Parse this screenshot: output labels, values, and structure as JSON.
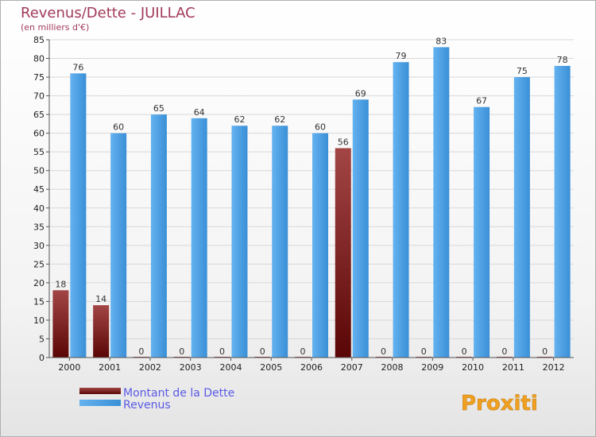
{
  "chart_data": {
    "type": "bar",
    "title": "Revenus/Dette - JUILLAC",
    "subtitle": "(en milliers d'€)",
    "categories": [
      "2000",
      "2001",
      "2002",
      "2003",
      "2004",
      "2005",
      "2006",
      "2007",
      "2008",
      "2009",
      "2010",
      "2011",
      "2012"
    ],
    "series": [
      {
        "name": "Montant de la Dette",
        "color": "#6b0f0f",
        "values": [
          18,
          14,
          0,
          0,
          0,
          0,
          0,
          56,
          0,
          0,
          0,
          0,
          0
        ]
      },
      {
        "name": "Revenus",
        "color": "#4a9fe0",
        "values": [
          76,
          60,
          65,
          64,
          62,
          62,
          60,
          69,
          79,
          83,
          67,
          75,
          78
        ]
      }
    ],
    "ylim": [
      0,
      85
    ],
    "yticks": [
      0,
      5,
      10,
      15,
      20,
      25,
      30,
      35,
      40,
      45,
      50,
      55,
      60,
      65,
      70,
      75,
      80,
      85
    ],
    "grid": true,
    "legend": "bottom-left"
  },
  "logo": {
    "text": "Proxiti"
  }
}
